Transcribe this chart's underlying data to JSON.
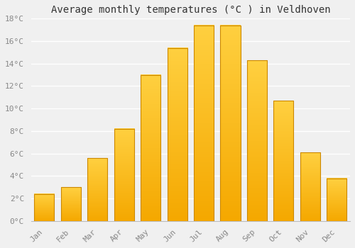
{
  "title": "Average monthly temperatures (°C ) in Veldhoven",
  "months": [
    "Jan",
    "Feb",
    "Mar",
    "Apr",
    "May",
    "Jun",
    "Jul",
    "Aug",
    "Sep",
    "Oct",
    "Nov",
    "Dec"
  ],
  "values": [
    2.4,
    3.0,
    5.6,
    8.2,
    13.0,
    15.4,
    17.4,
    17.4,
    14.3,
    10.7,
    6.1,
    3.8
  ],
  "bar_color_bottom": "#F5A800",
  "bar_color_top": "#FFD040",
  "bar_edge_color": "#CC8800",
  "background_color": "#F0F0F0",
  "grid_color": "#FFFFFF",
  "tick_label_color": "#888888",
  "title_color": "#333333",
  "ylim": [
    0,
    18
  ],
  "yticks": [
    0,
    2,
    4,
    6,
    8,
    10,
    12,
    14,
    16,
    18
  ],
  "ytick_labels": [
    "0°C",
    "2°C",
    "4°C",
    "6°C",
    "8°C",
    "10°C",
    "12°C",
    "14°C",
    "16°C",
    "18°C"
  ],
  "title_fontsize": 10,
  "tick_fontsize": 8,
  "font_family": "monospace",
  "bar_width": 0.75
}
